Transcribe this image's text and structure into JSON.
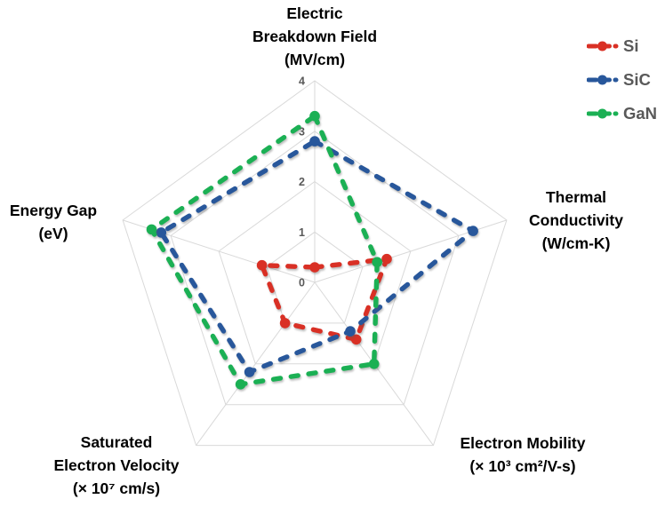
{
  "chart_data": {
    "type": "radar",
    "scale": {
      "min": 0,
      "max": 4,
      "ticks": [
        0,
        1,
        2,
        3,
        4
      ]
    },
    "axes": [
      {
        "key": "electric-breakdown-field",
        "title_lines": [
          "Electric",
          "Breakdown Field",
          "(MV/cm)"
        ]
      },
      {
        "key": "thermal-conductivity",
        "title_lines": [
          "Thermal",
          "Conductivity",
          "(W/cm-K)"
        ]
      },
      {
        "key": "electron-mobility",
        "title_lines": [
          "Electron Mobility",
          "(× 10³ cm²/V-s)"
        ]
      },
      {
        "key": "saturated-electron-velocity",
        "title_lines": [
          "Saturated",
          "Electron Velocity",
          "(× 10⁷ cm/s)"
        ]
      },
      {
        "key": "energy-gap",
        "title_lines": [
          "Energy Gap",
          "(eV)"
        ]
      }
    ],
    "series": [
      {
        "name": "Si",
        "color": "#D93025",
        "values": [
          0.3,
          1.5,
          1.4,
          1.0,
          1.1
        ]
      },
      {
        "name": "SiC",
        "color": "#28579B",
        "values": [
          2.8,
          3.3,
          1.2,
          2.2,
          3.2
        ]
      },
      {
        "name": "GaN",
        "color": "#1BB054",
        "values": [
          3.3,
          1.3,
          2.0,
          2.5,
          3.4
        ]
      }
    ],
    "legend": {
      "position": "top-right",
      "entries": [
        "Si",
        "SiC",
        "GaN"
      ]
    },
    "grid_on": true,
    "grid_color": "#D9D9D9",
    "tick_label_color": "#595959",
    "legend_text_color": "#595959",
    "axis_title_color": "#000000"
  }
}
